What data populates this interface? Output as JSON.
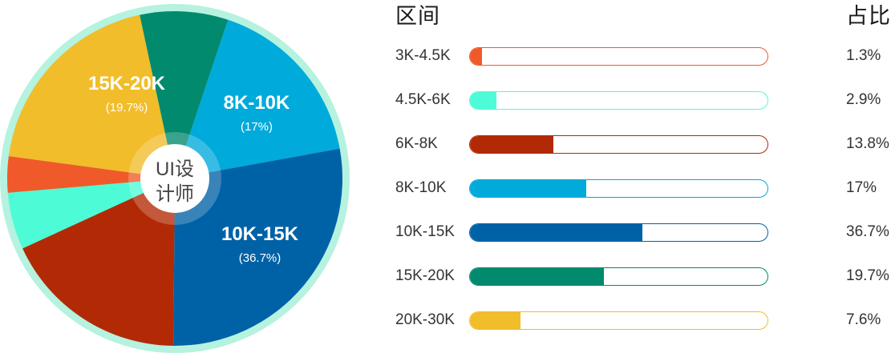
{
  "center_label": [
    "UI设",
    "计师"
  ],
  "headers": {
    "range": "区间",
    "share": "占比"
  },
  "colors": {
    "ring": "#b5f2df",
    "center_halo": "#ffffff"
  },
  "chart_data": {
    "type": "pie",
    "title": "",
    "slices": [
      {
        "label": "3K-4.5K",
        "share_text": "1.3%",
        "value": 1.3,
        "bar_fill": 0.04,
        "color": "#f05a2a"
      },
      {
        "label": "4.5K-6K",
        "share_text": "2.9%",
        "value": 2.9,
        "bar_fill": 0.09,
        "color": "#4dfcd6"
      },
      {
        "label": "6K-8K",
        "share_text": "13.8%",
        "value": 13.8,
        "bar_fill": 0.28,
        "color": "#b22a05"
      },
      {
        "label": "8K-10K",
        "share_text": "17%",
        "value": 17,
        "bar_fill": 0.39,
        "color": "#00aadb",
        "pie_label": "8K-10K",
        "pie_sub": "(17%)"
      },
      {
        "label": "10K-15K",
        "share_text": "36.7%",
        "value": 36.7,
        "bar_fill": 0.58,
        "color": "#0062a6",
        "pie_label": "10K-15K",
        "pie_sub": "(36.7%)"
      },
      {
        "label": "15K-20K",
        "share_text": "19.7%",
        "value": 19.7,
        "bar_fill": 0.45,
        "color": "#028a6e",
        "pie_label": "15K-20K",
        "pie_sub": "(19.7%)"
      },
      {
        "label": "20K-30K",
        "share_text": "7.6%",
        "value": 7.6,
        "bar_fill": 0.17,
        "color": "#f1bd2a"
      }
    ]
  }
}
